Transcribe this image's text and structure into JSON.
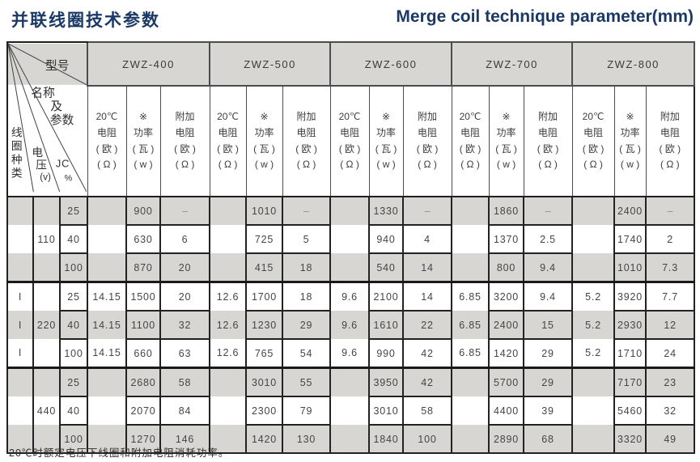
{
  "header": {
    "title_zh": "并联线圈技术参数",
    "title_en": "Merge coil technique parameter(mm)"
  },
  "table": {
    "corner": {
      "model_label": "型号",
      "name_line_1": "名称",
      "name_line_2": "及",
      "name_line_3": "参数",
      "coil_type_chars": [
        "线",
        "圈",
        "种",
        "类"
      ],
      "voltage_chars": [
        "电",
        "压"
      ],
      "voltage_unit": "(v)",
      "jc_label": "JC",
      "jc_unit": "%"
    },
    "models": [
      "ZWZ-400",
      "ZWZ-500",
      "ZWZ-600",
      "ZWZ-700",
      "ZWZ-800"
    ],
    "sub_headers": [
      [
        "20℃",
        "电阻",
        "( 欧 )",
        "( Ω )"
      ],
      [
        "※",
        "功率",
        "( 瓦 )",
        "( w )"
      ],
      [
        "附加",
        "电阻",
        "( 欧 )",
        "( Ω )"
      ]
    ],
    "groups": [
      {
        "coil_type": "",
        "voltage": "110",
        "rows": [
          {
            "jc": "25",
            "cells": [
              [
                "",
                "900",
                "–"
              ],
              [
                "",
                "1010",
                "–"
              ],
              [
                "",
                "1330",
                "–"
              ],
              [
                "",
                "1860",
                "–"
              ],
              [
                "",
                "2400",
                "–"
              ]
            ]
          },
          {
            "jc": "40",
            "cells": [
              [
                "",
                "630",
                "6"
              ],
              [
                "",
                "725",
                "5"
              ],
              [
                "",
                "940",
                "4"
              ],
              [
                "",
                "1370",
                "2.5"
              ],
              [
                "",
                "1740",
                "2"
              ]
            ]
          },
          {
            "jc": "100",
            "cells": [
              [
                "",
                "870",
                "20"
              ],
              [
                "",
                "415",
                "18"
              ],
              [
                "",
                "540",
                "14"
              ],
              [
                "",
                "800",
                "9.4"
              ],
              [
                "",
                "1010",
                "7.3"
              ]
            ]
          }
        ]
      },
      {
        "coil_type": "I",
        "voltage": "220",
        "rows": [
          {
            "jc": "25",
            "cells": [
              [
                "14.15",
                "1500",
                "20"
              ],
              [
                "12.6",
                "1700",
                "18"
              ],
              [
                "9.6",
                "2100",
                "14"
              ],
              [
                "6.85",
                "3200",
                "9.4"
              ],
              [
                "5.2",
                "3920",
                "7.7"
              ]
            ]
          },
          {
            "jc": "40",
            "cells": [
              [
                "14.15",
                "1100",
                "32"
              ],
              [
                "12.6",
                "1230",
                "29"
              ],
              [
                "9.6",
                "1610",
                "22"
              ],
              [
                "6.85",
                "2400",
                "15"
              ],
              [
                "5.2",
                "2930",
                "12"
              ]
            ]
          },
          {
            "jc": "100",
            "cells": [
              [
                "14.15",
                "660",
                "63"
              ],
              [
                "12.6",
                "765",
                "54"
              ],
              [
                "9.6",
                "990",
                "42"
              ],
              [
                "6.85",
                "1420",
                "29"
              ],
              [
                "5.2",
                "1710",
                "24"
              ]
            ]
          }
        ]
      },
      {
        "coil_type": "",
        "voltage": "440",
        "rows": [
          {
            "jc": "25",
            "cells": [
              [
                "",
                "2680",
                "58"
              ],
              [
                "",
                "3010",
                "55"
              ],
              [
                "",
                "3950",
                "42"
              ],
              [
                "",
                "5700",
                "29"
              ],
              [
                "",
                "7170",
                "23"
              ]
            ]
          },
          {
            "jc": "40",
            "cells": [
              [
                "",
                "2070",
                "84"
              ],
              [
                "",
                "2300",
                "79"
              ],
              [
                "",
                "3010",
                "58"
              ],
              [
                "",
                "4400",
                "39"
              ],
              [
                "",
                "5460",
                "32"
              ]
            ]
          },
          {
            "jc": "100",
            "cells": [
              [
                "",
                "1270",
                "146"
              ],
              [
                "",
                "1420",
                "130"
              ],
              [
                "",
                "1840",
                "100"
              ],
              [
                "",
                "2890",
                "68"
              ],
              [
                "",
                "3320",
                "49"
              ]
            ]
          }
        ]
      }
    ]
  },
  "footnote": "20℃时额定电压下线圈和附加电阻消耗功率。",
  "colors": {
    "title_navy": "#1b3966",
    "stripe_gray": "#d7d6d3",
    "border_dark": "#222222"
  }
}
